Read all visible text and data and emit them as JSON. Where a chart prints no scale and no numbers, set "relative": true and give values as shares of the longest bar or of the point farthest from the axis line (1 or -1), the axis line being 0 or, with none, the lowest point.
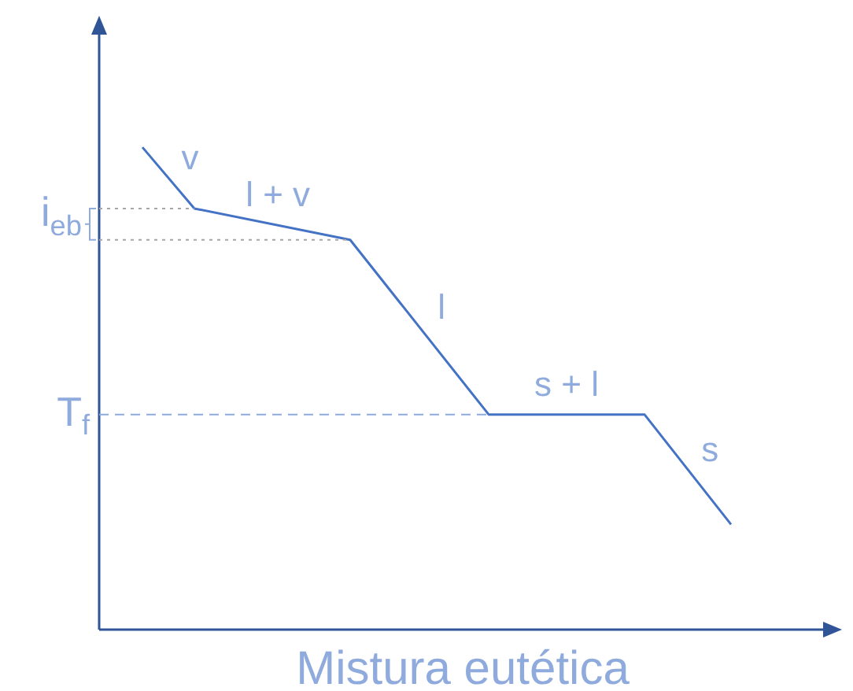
{
  "chart_data": {
    "type": "line",
    "relative": true,
    "xlabel": "Mistura eutética",
    "categories": [
      null,
      null,
      null,
      null,
      null,
      null,
      null,
      null,
      null,
      null,
      null,
      null,
      null,
      null,
      null,
      null,
      null,
      null,
      null,
      null,
      null,
      null,
      null,
      null,
      null,
      null,
      null,
      null,
      null,
      null,
      null,
      null,
      null,
      null,
      null,
      null,
      null,
      null,
      null,
      null,
      null,
      null
    ],
    "series": [
      {
        "color": "#4472c4",
        "values": [
          null,
          null,
          1,
          null,
          null,
          0.873,
          null,
          null,
          null,
          null,
          null,
          null,
          null,
          null,
          0.808,
          null,
          null,
          null,
          null,
          null,
          null,
          null,
          0.446,
          null,
          null,
          null,
          null,
          null,
          null,
          null,
          null,
          0.446,
          null,
          null,
          null,
          null,
          0.218,
          null,
          null,
          null,
          null,
          null
        ]
      }
    ],
    "marker": "none",
    "line_style": "solid",
    "legend": false,
    "ref_lines": [
      {
        "axis": "y",
        "value": 0.873,
        "line_style": "dotted",
        "color": "#a6a6a6"
      },
      {
        "axis": "y",
        "value": 0.808,
        "label": "i$_{eb}$",
        "line_style": "dotted",
        "color": "#a6a6a6"
      },
      {
        "axis": "y",
        "value": 0.446,
        "label": "T$_{f}$",
        "line_style": "dashed",
        "color": "#8faadc"
      }
    ],
    "annotations": [
      "v",
      "l + v",
      "l",
      "s + l",
      "s"
    ]
  }
}
